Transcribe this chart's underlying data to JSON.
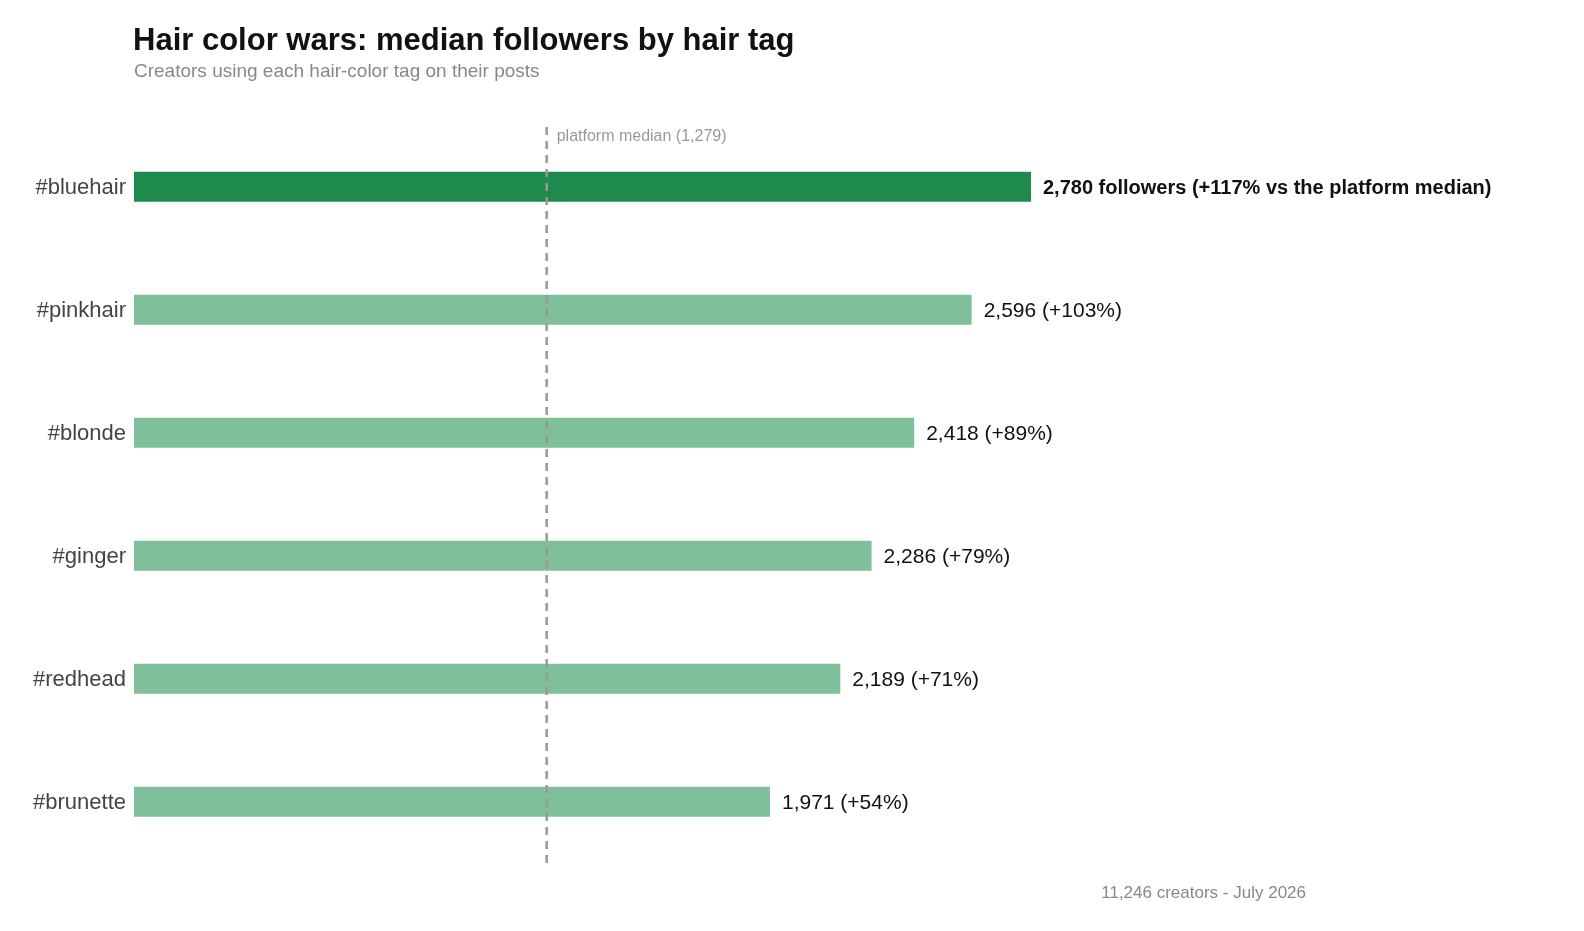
{
  "chart_data": {
    "type": "bar",
    "orientation": "horizontal",
    "title": "Hair color wars: median followers by hair tag",
    "subtitle": "Creators using each hair-color tag on their posts",
    "categories": [
      "#bluehair",
      "#pinkhair",
      "#blonde",
      "#ginger",
      "#redhead",
      "#brunette"
    ],
    "values": [
      2780,
      2596,
      2418,
      2286,
      2189,
      1971
    ],
    "colors": [
      "#1e8a4e",
      "#7fc09a",
      "#7fc09a",
      "#7fc09a",
      "#7fc09a",
      "#7fc09a"
    ],
    "value_labels": [
      "2,780 followers  (+117% vs the platform median)",
      "2,596  (+103%)",
      "2,418  (+89%)",
      "2,286  (+79%)",
      "2,189  (+71%)",
      "1,971  (+54%)"
    ],
    "ref_lines": [
      {
        "axis": "x",
        "value": 1279,
        "label": "platform median (1,279)",
        "color": "#999999",
        "line_style": "dashed"
      }
    ],
    "annotations": [
      "11,246 creators - July 2026"
    ]
  }
}
